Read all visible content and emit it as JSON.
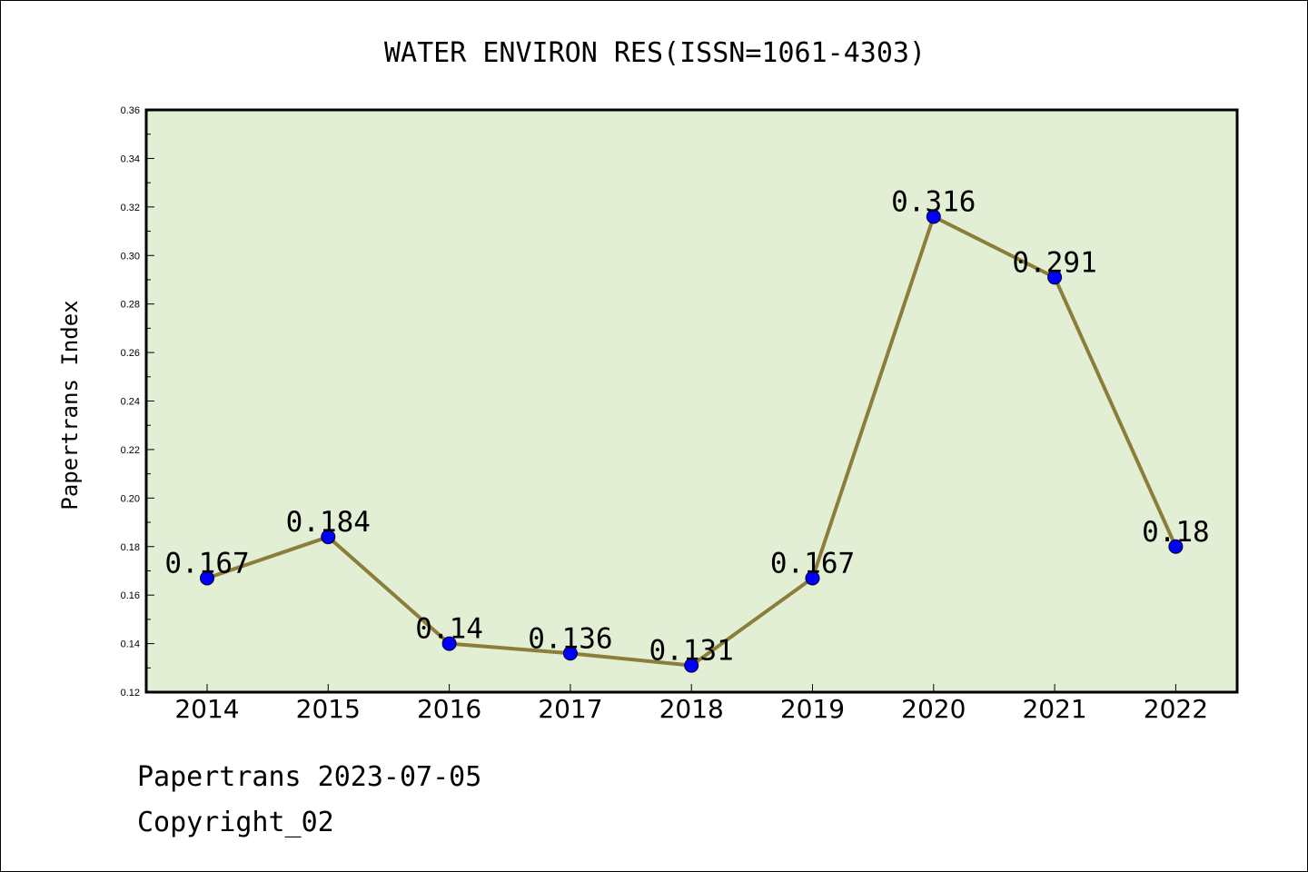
{
  "footer": {
    "line1": "Papertrans 2023-07-05",
    "line2": "Copyright_02"
  },
  "chart_data": {
    "type": "line",
    "title": "WATER ENVIRON RES(ISSN=1061-4303)",
    "xlabel": "",
    "ylabel": "Papertrans Index",
    "categories": [
      "2014",
      "2015",
      "2016",
      "2017",
      "2018",
      "2019",
      "2020",
      "2021",
      "2022"
    ],
    "series": [
      {
        "values": [
          0.167,
          0.184,
          0.14,
          0.136,
          0.131,
          0.167,
          0.316,
          0.291,
          0.18
        ],
        "labels": [
          "0.167",
          "0.184",
          "0.14",
          "0.136",
          "0.131",
          "0.167",
          "0.316",
          "0.291",
          "0.18"
        ]
      }
    ],
    "ylim": [
      0.12,
      0.36
    ],
    "yticks": [
      "0.12",
      "0.14",
      "0.16",
      "0.18",
      "0.20",
      "0.22",
      "0.24",
      "0.26",
      "0.28",
      "0.30",
      "0.32",
      "0.34",
      "0.36"
    ],
    "grid": false,
    "legend": "none",
    "colors": {
      "plot_background": "#e2efd4",
      "line": "#8b7d3a",
      "marker": "#0000ff"
    }
  }
}
